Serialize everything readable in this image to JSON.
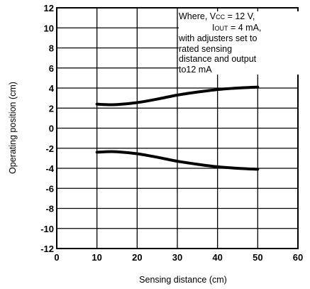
{
  "chart_data": {
    "type": "line",
    "xlabel": "Sensing distance (cm)",
    "ylabel": "Operating position (cm)",
    "xlim": [
      0,
      60
    ],
    "ylim": [
      -12,
      12
    ],
    "xticks": [
      "0",
      "10",
      "20",
      "30",
      "40",
      "50",
      "60"
    ],
    "yticks": [
      "12",
      "10",
      "8",
      "6",
      "4",
      "2",
      "0",
      "-2",
      "-4",
      "-6",
      "-8",
      "-10",
      "-12"
    ],
    "grid": true,
    "series": [
      {
        "x": [
          10,
          12,
          15,
          20,
          25,
          30,
          35,
          40,
          45,
          50
        ],
        "y": [
          2.4,
          2.35,
          2.35,
          2.55,
          2.9,
          3.3,
          3.6,
          3.85,
          4.0,
          4.1
        ]
      },
      {
        "x": [
          10,
          12,
          15,
          20,
          25,
          30,
          35,
          40,
          45,
          50
        ],
        "y": [
          -2.4,
          -2.35,
          -2.35,
          -2.55,
          -2.9,
          -3.3,
          -3.6,
          -3.85,
          -4.0,
          -4.1
        ]
      }
    ],
    "annotation": {
      "line1_prefix": "Where, V",
      "line1_sub": "CC",
      "line1_suffix": " = 12 V,",
      "line2_prefix": "I",
      "line2_sub": "OUT",
      "line2_suffix": " = 4 mA,",
      "line3": "with adjusters set to",
      "line4": "rated sensing",
      "line5": "distance and output",
      "line6": "to12 mA"
    }
  }
}
